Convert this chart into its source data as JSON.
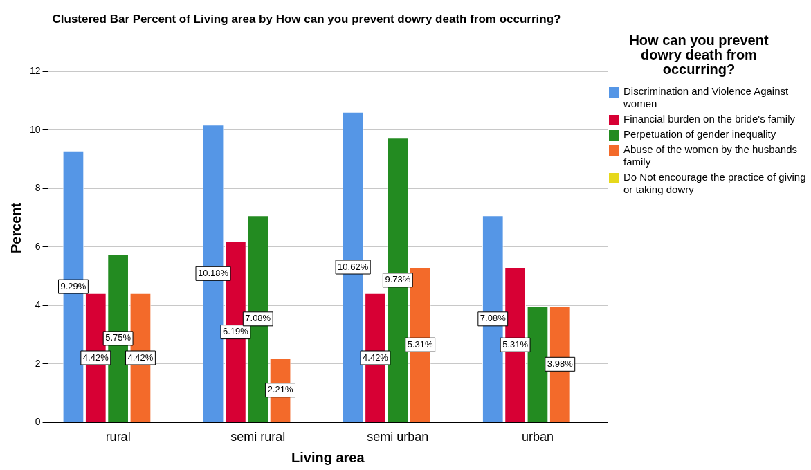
{
  "chart_data": {
    "type": "bar",
    "title": "Clustered Bar Percent of Living area by How can you prevent dowry death from occurring?",
    "xlabel": "Living area",
    "ylabel": "Percent",
    "legend_title": "How can you prevent dowry death from occurring?",
    "legend": "right",
    "grid": "y",
    "categories": [
      "rural",
      "semi rural",
      "semi urban",
      "urban"
    ],
    "ylim": [
      0,
      13.3
    ],
    "yticks": [
      0,
      2,
      4,
      6,
      8,
      10,
      12
    ],
    "series": [
      {
        "name": "Discrimination and Violence Against women",
        "color": "#5596e6",
        "values": [
          9.29,
          10.18,
          10.62,
          7.08
        ],
        "value_labels": [
          "9.29%",
          "10.18%",
          "10.62%",
          "7.08%"
        ]
      },
      {
        "name": "Financial burden on the bride's family",
        "color": "#d70034",
        "values": [
          4.42,
          6.19,
          4.42,
          5.31
        ],
        "value_labels": [
          "4.42%",
          "6.19%",
          "4.42%",
          "5.31%"
        ]
      },
      {
        "name": "Perpetuation of gender inequality",
        "color": "#238b21",
        "values": [
          5.75,
          7.08,
          9.73,
          3.98
        ],
        "value_labels": [
          "5.75%",
          "7.08%",
          "9.73%",
          null
        ]
      },
      {
        "name": "Abuse of the women by the husbands family",
        "color": "#f36a2a",
        "values": [
          4.42,
          2.21,
          5.31,
          3.98
        ],
        "value_labels": [
          "4.42%",
          "2.21%",
          "5.31%",
          "3.98%"
        ]
      },
      {
        "name": "Do Not encourage the practice of giving or taking dowry",
        "color": "#e6d81c",
        "values": [
          null,
          null,
          null,
          null
        ]
      }
    ]
  }
}
